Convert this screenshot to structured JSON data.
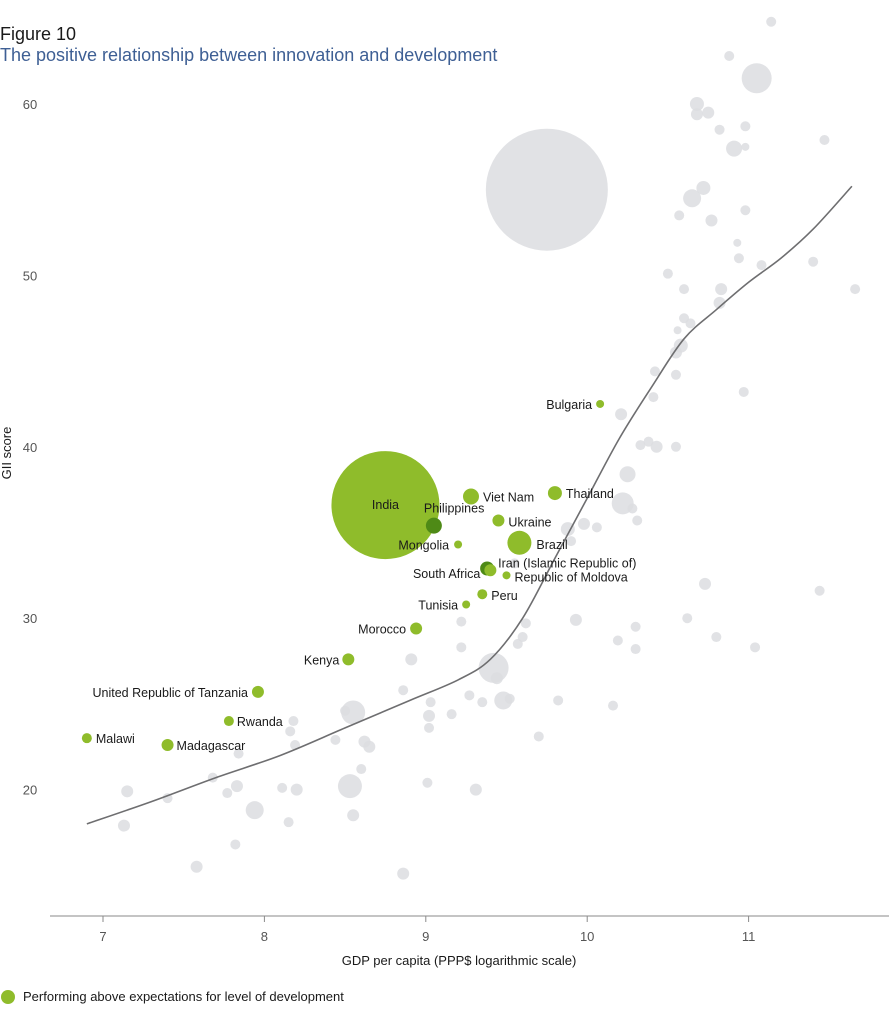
{
  "figure_label": "Figure 10",
  "title": "The positive relationship between innovation and development",
  "legend": {
    "label": "Performing above expectations for level of development"
  },
  "colors": {
    "highlight": "#8fbc2b",
    "highlight_dark": "#4e8a16",
    "other": "#dcdde1",
    "trend": "#6e6e70",
    "axis": "#8a8a8a",
    "text": "#1a1a1a"
  },
  "chart_data": {
    "type": "scatter",
    "title": "The positive relationship between innovation and development",
    "xlabel": "GDP per capita (PPP$ logarithmic scale)",
    "ylabel": "GII score",
    "xlim": [
      6.67,
      11.85
    ],
    "ylim": [
      14,
      65
    ],
    "xticks": [
      7,
      8,
      9,
      10,
      11
    ],
    "yticks": [
      20,
      30,
      40,
      50,
      60
    ],
    "size_encoding": "population",
    "highlighted_series_name": "Performing above expectations for level of development",
    "highlighted": [
      {
        "name": "India",
        "x": 8.75,
        "y": 36.6,
        "r": 54
      },
      {
        "name": "Philippines",
        "x": 9.05,
        "y": 35.4,
        "r": 8
      },
      {
        "name": "Viet Nam",
        "x": 9.28,
        "y": 37.1,
        "r": 8
      },
      {
        "name": "Thailand",
        "x": 9.8,
        "y": 37.3,
        "r": 7
      },
      {
        "name": "Ukraine",
        "x": 9.45,
        "y": 35.7,
        "r": 6
      },
      {
        "name": "Brazil",
        "x": 9.58,
        "y": 34.4,
        "r": 12
      },
      {
        "name": "Mongolia",
        "x": 9.2,
        "y": 34.3,
        "r": 4
      },
      {
        "name": "Iran (Islamic Republic of)",
        "x": 9.38,
        "y": 32.9,
        "r": 7
      },
      {
        "name": "South Africa",
        "x": 9.4,
        "y": 32.8,
        "r": 6
      },
      {
        "name": "Republic of Moldova",
        "x": 9.5,
        "y": 32.5,
        "r": 4
      },
      {
        "name": "Peru",
        "x": 9.35,
        "y": 31.4,
        "r": 5
      },
      {
        "name": "Tunisia",
        "x": 9.25,
        "y": 30.8,
        "r": 4
      },
      {
        "name": "Morocco",
        "x": 8.94,
        "y": 29.4,
        "r": 6
      },
      {
        "name": "Kenya",
        "x": 8.52,
        "y": 27.6,
        "r": 6
      },
      {
        "name": "United Republic of Tanzania",
        "x": 7.96,
        "y": 25.7,
        "r": 6
      },
      {
        "name": "Rwanda",
        "x": 7.78,
        "y": 24.0,
        "r": 5
      },
      {
        "name": "Malawi",
        "x": 6.9,
        "y": 23.0,
        "r": 5
      },
      {
        "name": "Madagascar",
        "x": 7.4,
        "y": 22.6,
        "r": 6
      },
      {
        "name": "Bulgaria",
        "x": 10.08,
        "y": 42.5,
        "r": 4
      }
    ],
    "others": [
      {
        "x": 9.75,
        "y": 55.0,
        "r": 61
      },
      {
        "x": 11.05,
        "y": 61.5,
        "r": 15
      },
      {
        "x": 10.65,
        "y": 54.5,
        "r": 9
      },
      {
        "x": 10.72,
        "y": 55.1,
        "r": 7
      },
      {
        "x": 10.57,
        "y": 53.5,
        "r": 5
      },
      {
        "x": 10.77,
        "y": 53.2,
        "r": 6
      },
      {
        "x": 10.98,
        "y": 53.8,
        "r": 5
      },
      {
        "x": 10.91,
        "y": 57.4,
        "r": 8
      },
      {
        "x": 10.98,
        "y": 58.7,
        "r": 5
      },
      {
        "x": 10.98,
        "y": 57.5,
        "r": 4
      },
      {
        "x": 10.82,
        "y": 58.5,
        "r": 5
      },
      {
        "x": 10.75,
        "y": 59.5,
        "r": 6
      },
      {
        "x": 10.68,
        "y": 60.0,
        "r": 7
      },
      {
        "x": 10.68,
        "y": 59.4,
        "r": 6
      },
      {
        "x": 10.88,
        "y": 62.8,
        "r": 5
      },
      {
        "x": 11.14,
        "y": 64.8,
        "r": 5
      },
      {
        "x": 11.47,
        "y": 57.9,
        "r": 5
      },
      {
        "x": 10.93,
        "y": 51.9,
        "r": 4
      },
      {
        "x": 10.94,
        "y": 51.0,
        "r": 5
      },
      {
        "x": 11.08,
        "y": 50.6,
        "r": 5
      },
      {
        "x": 11.4,
        "y": 50.8,
        "r": 5
      },
      {
        "x": 11.66,
        "y": 49.2,
        "r": 5
      },
      {
        "x": 10.5,
        "y": 50.1,
        "r": 5
      },
      {
        "x": 10.6,
        "y": 49.2,
        "r": 5
      },
      {
        "x": 10.83,
        "y": 49.2,
        "r": 6
      },
      {
        "x": 10.82,
        "y": 48.4,
        "r": 6
      },
      {
        "x": 10.6,
        "y": 47.5,
        "r": 5
      },
      {
        "x": 10.64,
        "y": 47.2,
        "r": 5
      },
      {
        "x": 10.56,
        "y": 46.8,
        "r": 4
      },
      {
        "x": 10.58,
        "y": 45.9,
        "r": 7
      },
      {
        "x": 10.55,
        "y": 45.5,
        "r": 6
      },
      {
        "x": 10.42,
        "y": 44.4,
        "r": 5
      },
      {
        "x": 10.55,
        "y": 44.2,
        "r": 5
      },
      {
        "x": 10.41,
        "y": 42.9,
        "r": 5
      },
      {
        "x": 10.21,
        "y": 41.9,
        "r": 6
      },
      {
        "x": 10.97,
        "y": 43.2,
        "r": 5
      },
      {
        "x": 10.33,
        "y": 40.1,
        "r": 5
      },
      {
        "x": 10.38,
        "y": 40.3,
        "r": 5
      },
      {
        "x": 10.43,
        "y": 40.0,
        "r": 6
      },
      {
        "x": 10.55,
        "y": 40.0,
        "r": 5
      },
      {
        "x": 10.25,
        "y": 38.4,
        "r": 8
      },
      {
        "x": 10.22,
        "y": 36.7,
        "r": 11
      },
      {
        "x": 10.28,
        "y": 36.4,
        "r": 5
      },
      {
        "x": 10.31,
        "y": 35.7,
        "r": 5
      },
      {
        "x": 9.98,
        "y": 35.5,
        "r": 6
      },
      {
        "x": 10.06,
        "y": 35.3,
        "r": 5
      },
      {
        "x": 9.88,
        "y": 35.2,
        "r": 7
      },
      {
        "x": 9.9,
        "y": 34.5,
        "r": 5
      },
      {
        "x": 9.55,
        "y": 33.2,
        "r": 5
      },
      {
        "x": 9.62,
        "y": 29.7,
        "r": 5
      },
      {
        "x": 9.57,
        "y": 28.5,
        "r": 5
      },
      {
        "x": 9.6,
        "y": 28.9,
        "r": 5
      },
      {
        "x": 9.93,
        "y": 29.9,
        "r": 6
      },
      {
        "x": 10.19,
        "y": 28.7,
        "r": 5
      },
      {
        "x": 10.3,
        "y": 29.5,
        "r": 5
      },
      {
        "x": 10.3,
        "y": 28.2,
        "r": 5
      },
      {
        "x": 10.62,
        "y": 30.0,
        "r": 5
      },
      {
        "x": 10.73,
        "y": 32.0,
        "r": 6
      },
      {
        "x": 10.8,
        "y": 28.9,
        "r": 5
      },
      {
        "x": 11.04,
        "y": 28.3,
        "r": 5
      },
      {
        "x": 11.44,
        "y": 31.6,
        "r": 5
      },
      {
        "x": 9.42,
        "y": 27.1,
        "r": 15
      },
      {
        "x": 9.44,
        "y": 26.5,
        "r": 6
      },
      {
        "x": 9.48,
        "y": 25.2,
        "r": 9
      },
      {
        "x": 9.27,
        "y": 25.5,
        "r": 5
      },
      {
        "x": 9.35,
        "y": 25.1,
        "r": 5
      },
      {
        "x": 9.52,
        "y": 25.3,
        "r": 5
      },
      {
        "x": 9.82,
        "y": 25.2,
        "r": 5
      },
      {
        "x": 10.16,
        "y": 24.9,
        "r": 5
      },
      {
        "x": 9.22,
        "y": 29.8,
        "r": 5
      },
      {
        "x": 9.22,
        "y": 28.3,
        "r": 5
      },
      {
        "x": 8.91,
        "y": 27.6,
        "r": 6
      },
      {
        "x": 8.86,
        "y": 25.8,
        "r": 5
      },
      {
        "x": 9.03,
        "y": 25.1,
        "r": 5
      },
      {
        "x": 9.02,
        "y": 24.3,
        "r": 6
      },
      {
        "x": 9.02,
        "y": 23.6,
        "r": 5
      },
      {
        "x": 9.16,
        "y": 24.4,
        "r": 5
      },
      {
        "x": 8.55,
        "y": 24.5,
        "r": 12
      },
      {
        "x": 8.5,
        "y": 24.6,
        "r": 5
      },
      {
        "x": 8.44,
        "y": 22.9,
        "r": 5
      },
      {
        "x": 8.62,
        "y": 22.8,
        "r": 6
      },
      {
        "x": 8.65,
        "y": 22.5,
        "r": 6
      },
      {
        "x": 8.18,
        "y": 24.0,
        "r": 5
      },
      {
        "x": 8.16,
        "y": 23.4,
        "r": 5
      },
      {
        "x": 8.19,
        "y": 22.6,
        "r": 5
      },
      {
        "x": 8.2,
        "y": 20.0,
        "r": 6
      },
      {
        "x": 8.11,
        "y": 20.1,
        "r": 5
      },
      {
        "x": 8.15,
        "y": 18.1,
        "r": 5
      },
      {
        "x": 7.84,
        "y": 22.1,
        "r": 5
      },
      {
        "x": 7.83,
        "y": 20.2,
        "r": 6
      },
      {
        "x": 7.77,
        "y": 19.8,
        "r": 5
      },
      {
        "x": 7.68,
        "y": 20.7,
        "r": 5
      },
      {
        "x": 7.94,
        "y": 18.8,
        "r": 9
      },
      {
        "x": 8.53,
        "y": 20.2,
        "r": 12
      },
      {
        "x": 8.6,
        "y": 21.2,
        "r": 5
      },
      {
        "x": 8.55,
        "y": 18.5,
        "r": 6
      },
      {
        "x": 9.01,
        "y": 20.4,
        "r": 5
      },
      {
        "x": 9.31,
        "y": 20.0,
        "r": 6
      },
      {
        "x": 7.82,
        "y": 16.8,
        "r": 5
      },
      {
        "x": 7.58,
        "y": 15.5,
        "r": 6
      },
      {
        "x": 7.4,
        "y": 19.5,
        "r": 5
      },
      {
        "x": 7.15,
        "y": 19.9,
        "r": 6
      },
      {
        "x": 7.13,
        "y": 17.9,
        "r": 6
      },
      {
        "x": 8.86,
        "y": 15.1,
        "r": 6
      },
      {
        "x": 9.7,
        "y": 23.1,
        "r": 5
      }
    ],
    "trend_line": [
      {
        "x": 6.9,
        "y": 18.0
      },
      {
        "x": 7.3,
        "y": 19.3
      },
      {
        "x": 7.7,
        "y": 20.7
      },
      {
        "x": 8.1,
        "y": 22.0
      },
      {
        "x": 8.5,
        "y": 23.6
      },
      {
        "x": 8.9,
        "y": 25.2
      },
      {
        "x": 9.2,
        "y": 26.4
      },
      {
        "x": 9.4,
        "y": 27.6
      },
      {
        "x": 9.6,
        "y": 30.0
      },
      {
        "x": 9.8,
        "y": 33.5
      },
      {
        "x": 10.0,
        "y": 37.0
      },
      {
        "x": 10.2,
        "y": 40.5
      },
      {
        "x": 10.4,
        "y": 43.5
      },
      {
        "x": 10.6,
        "y": 46.3
      },
      {
        "x": 10.8,
        "y": 48.0
      },
      {
        "x": 11.0,
        "y": 49.6
      },
      {
        "x": 11.2,
        "y": 51.0
      },
      {
        "x": 11.4,
        "y": 52.7
      },
      {
        "x": 11.64,
        "y": 55.2
      }
    ]
  }
}
